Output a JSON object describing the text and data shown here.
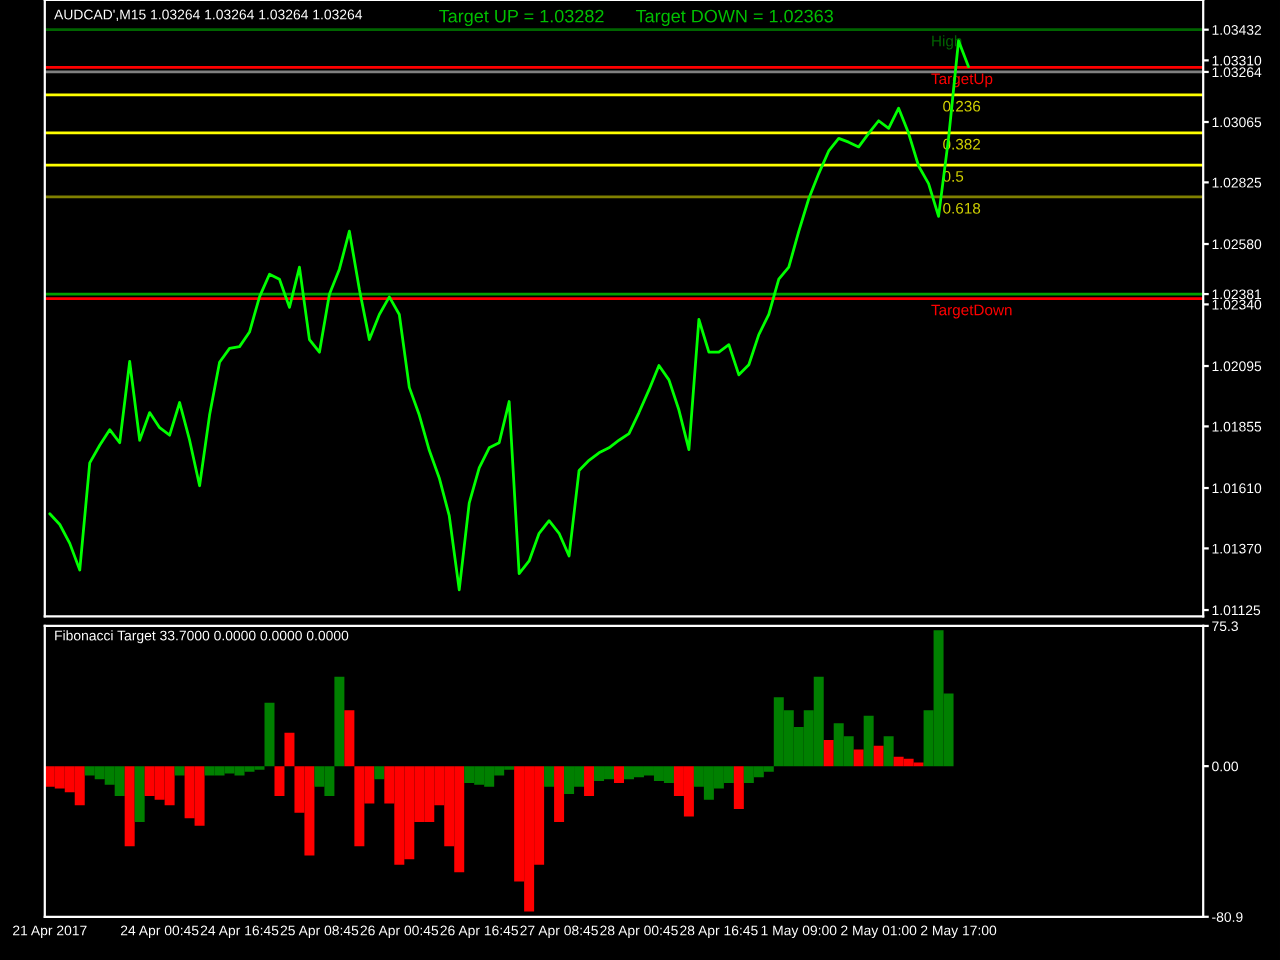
{
  "chart_data": [
    {
      "type": "line",
      "title": "AUDCAD',M15 1.03264 1.03264 1.03264 1.03264",
      "annotations": [
        "Target UP = 1.03282",
        "Target DOWN = 1.02363",
        {
          "text": "0.236",
          "y": 1.03173
        },
        {
          "text": "0.382",
          "y": 1.03022
        },
        {
          "text": "0.5",
          "y": 1.02894
        },
        {
          "text": "0.618",
          "y": 1.02767
        }
      ],
      "categories": [
        null,
        null,
        null,
        null,
        null,
        null,
        null,
        null,
        null,
        null,
        null,
        null,
        null,
        null,
        null,
        null,
        null,
        null,
        null,
        null,
        null,
        null,
        null,
        null,
        null,
        null,
        null,
        null,
        null,
        null,
        null,
        null,
        null,
        null,
        null,
        null,
        null,
        null,
        null,
        null,
        null,
        null,
        null,
        null,
        null,
        null,
        null,
        null,
        null,
        null,
        null,
        null,
        null,
        null,
        null,
        null,
        null,
        null,
        null,
        null,
        null,
        null,
        null,
        null,
        null,
        null,
        null,
        null,
        null,
        null,
        null,
        null,
        null,
        null,
        null,
        null,
        null,
        null,
        null,
        null,
        null,
        null,
        null,
        null,
        null,
        null,
        null,
        null,
        null,
        null,
        null,
        null,
        null,
        null,
        null,
        null,
        null,
        null,
        null,
        null,
        null,
        null,
        null,
        null,
        null,
        null,
        null,
        null,
        null,
        null,
        null,
        null,
        null,
        null,
        null,
        null
      ],
      "ylim": [
        1.011,
        1.0355
      ],
      "yticks": [
        {
          "value": 1.01125,
          "label": "1.01125"
        },
        {
          "value": 1.0137,
          "label": "1.01370"
        },
        {
          "value": 1.0161,
          "label": "1.01610"
        },
        {
          "value": 1.01855,
          "label": "1.01855"
        },
        {
          "value": 1.02095,
          "label": "1.02095"
        },
        {
          "value": 1.0234,
          "label": "1.02340"
        },
        {
          "value": 1.0258,
          "label": "1.02580"
        },
        {
          "value": 1.02825,
          "label": "1.02825"
        },
        {
          "value": 1.03065,
          "label": "1.03065"
        },
        {
          "value": 1.0331,
          "label": "1.03310"
        },
        {
          "value": 1.03432,
          "label": "1.03432"
        },
        {
          "value": 1.03264,
          "label": "1.03264"
        },
        {
          "value": 1.02381,
          "label": "1.02381"
        }
      ],
      "tick_labels": "y",
      "grid": false,
      "legend": false,
      "marker": "none",
      "line_style": "solid",
      "ref_lines": [
        {
          "axis": "y",
          "value": 1.03432,
          "label": "High",
          "color": "#006400"
        },
        {
          "axis": "y",
          "value": 1.03282,
          "label": "TargetUp",
          "color": "#ff0000"
        },
        {
          "axis": "y",
          "value": 1.03264,
          "label": null,
          "color": "#808080"
        },
        {
          "axis": "y",
          "value": 1.03173,
          "label": null,
          "color": "#ffff00"
        },
        {
          "axis": "y",
          "value": 1.03022,
          "label": null,
          "color": "#ffff00"
        },
        {
          "axis": "y",
          "value": 1.02894,
          "label": null,
          "color": "#ffff00"
        },
        {
          "axis": "y",
          "value": 1.02767,
          "label": null,
          "color": "#808000"
        },
        {
          "axis": "y",
          "value": 1.02381,
          "label": null,
          "color": "#00a000"
        },
        {
          "axis": "y",
          "value": 1.02363,
          "label": "TargetDown",
          "color": "#ff0000"
        }
      ],
      "series": [
        {
          "color": "#00ff00",
          "values": [
            1.01508,
            1.01465,
            1.0139,
            1.01284,
            1.0171,
            1.0178,
            1.01842,
            1.0179,
            1.02113,
            1.018,
            1.0191,
            1.0185,
            1.0182,
            1.0195,
            1.018,
            1.01619,
            1.019,
            1.0211,
            1.02165,
            1.02172,
            1.0223,
            1.0237,
            1.0246,
            1.0244,
            1.02328,
            1.02488,
            1.022,
            1.0215,
            1.0238,
            1.0248,
            1.02631,
            1.024,
            1.022,
            1.023,
            1.0237,
            1.023,
            1.0201,
            1.019,
            1.0176,
            1.0165,
            1.015,
            1.01205,
            1.0155,
            1.0169,
            1.0177,
            1.0179,
            1.01954,
            1.0127,
            1.0132,
            1.0143,
            1.0148,
            1.0143,
            1.0134,
            1.0168,
            1.0172,
            1.0175,
            1.0177,
            1.018,
            1.01826,
            1.0191,
            1.02,
            1.02097,
            1.0204,
            1.0192,
            1.01763,
            1.0228,
            1.0215,
            1.0215,
            1.0218,
            1.0206,
            1.021,
            1.0222,
            1.023,
            1.0244,
            1.02488,
            1.0263,
            1.0276,
            1.0286,
            1.0295,
            1.03,
            1.02985,
            1.02966,
            1.0302,
            1.0307,
            1.0304,
            1.0312,
            1.0302,
            1.0289,
            1.0282,
            1.0269,
            1.03,
            1.03388,
            1.03285,
            null,
            null,
            null,
            null,
            null,
            null,
            null,
            null,
            null,
            null,
            null,
            null,
            null,
            null,
            null,
            null,
            null,
            null,
            null,
            null,
            null,
            null,
            null
          ]
        }
      ]
    },
    {
      "type": "bar",
      "title": "Fibonacci Target 33.7000 0.0000 0.0000 0.0000",
      "categories": [
        "21 Apr 2017",
        null,
        null,
        null,
        null,
        null,
        null,
        null,
        null,
        null,
        null,
        "24 Apr 00:45",
        null,
        null,
        null,
        null,
        null,
        null,
        null,
        "24 Apr 16:45",
        null,
        null,
        null,
        null,
        null,
        null,
        null,
        "25 Apr 08:45",
        null,
        null,
        null,
        null,
        null,
        null,
        null,
        "26 Apr 00:45",
        null,
        null,
        null,
        null,
        null,
        null,
        null,
        "26 Apr 16:45",
        null,
        null,
        null,
        null,
        null,
        null,
        null,
        "27 Apr 08:45",
        null,
        null,
        null,
        null,
        null,
        null,
        null,
        "28 Apr 00:45",
        null,
        null,
        null,
        null,
        null,
        null,
        null,
        "28 Apr 16:45",
        null,
        null,
        null,
        null,
        null,
        null,
        null,
        "1 May 09:00",
        null,
        null,
        null,
        null,
        null,
        null,
        null,
        "2 May 01:00",
        null,
        null,
        null,
        null,
        null,
        null,
        null,
        "2 May 17:00",
        null,
        null,
        null,
        null,
        null,
        null,
        null,
        null,
        null,
        null,
        null,
        null,
        null,
        null,
        null,
        null,
        null,
        null,
        null,
        null,
        null,
        null,
        null,
        null
      ],
      "ylim": [
        -80.9,
        75.3
      ],
      "yticks": [
        75.3,
        {
          "value": 0,
          "label": "0.00"
        },
        -80.9
      ],
      "grid": false,
      "legend": false,
      "values": [
        -11,
        -12,
        -14,
        -21,
        -5,
        -7,
        -10,
        -16,
        -43,
        -30,
        -16,
        -18,
        -21,
        -5,
        -28,
        -32,
        -5,
        -5,
        -4,
        -5,
        -3,
        -2,
        34,
        -16,
        18,
        -25,
        -48,
        -11,
        -16,
        48,
        30,
        -43,
        -20,
        -7,
        -20,
        -53,
        -50,
        -30,
        -30,
        -21,
        -43,
        -57,
        -9,
        -10,
        -11,
        -5,
        -2,
        -62,
        -78,
        -53,
        -11,
        -30,
        -15,
        -11,
        -16,
        -8,
        -7,
        -9,
        -7,
        -6,
        -5,
        -8,
        -9,
        -16,
        -27,
        -11,
        -18,
        -12,
        -9,
        -23,
        -9,
        -6,
        -3,
        37,
        30,
        21,
        30,
        48,
        14,
        23,
        16,
        9,
        27,
        11,
        16,
        5,
        4,
        2,
        30,
        73,
        39,
        null,
        null,
        null,
        null,
        null,
        null,
        null,
        null,
        null,
        null,
        null,
        null,
        null,
        null,
        null,
        null,
        null,
        null,
        null,
        null,
        null,
        null,
        null,
        null,
        null
      ],
      "colors": [
        "#ff0000",
        "#ff0000",
        "#ff0000",
        "#ff0000",
        "#008000",
        "#008000",
        "#008000",
        "#008000",
        "#ff0000",
        "#008000",
        "#ff0000",
        "#ff0000",
        "#ff0000",
        "#008000",
        "#ff0000",
        "#ff0000",
        "#008000",
        "#008000",
        "#008000",
        "#008000",
        "#008000",
        "#008000",
        "#008000",
        "#ff0000",
        "#ff0000",
        "#ff0000",
        "#ff0000",
        "#008000",
        "#008000",
        "#008000",
        "#ff0000",
        "#ff0000",
        "#ff0000",
        "#008000",
        "#ff0000",
        "#ff0000",
        "#ff0000",
        "#ff0000",
        "#ff0000",
        "#ff0000",
        "#ff0000",
        "#ff0000",
        "#008000",
        "#008000",
        "#008000",
        "#008000",
        "#008000",
        "#ff0000",
        "#ff0000",
        "#ff0000",
        "#008000",
        "#ff0000",
        "#008000",
        "#008000",
        "#ff0000",
        "#008000",
        "#008000",
        "#ff0000",
        "#008000",
        "#008000",
        "#008000",
        "#008000",
        "#008000",
        "#ff0000",
        "#ff0000",
        "#008000",
        "#008000",
        "#008000",
        "#008000",
        "#ff0000",
        "#008000",
        "#008000",
        "#008000",
        "#008000",
        "#008000",
        "#008000",
        "#008000",
        "#008000",
        "#ff0000",
        "#008000",
        "#008000",
        "#ff0000",
        "#008000",
        "#ff0000",
        "#008000",
        "#ff0000",
        "#ff0000",
        "#ff0000",
        "#008000",
        "#008000",
        "#008000",
        null,
        null,
        null,
        null,
        null,
        null,
        null,
        null,
        null,
        null,
        null,
        null,
        null,
        null,
        null,
        null,
        null,
        null,
        null,
        null,
        null,
        null,
        null,
        null,
        null
      ]
    }
  ]
}
